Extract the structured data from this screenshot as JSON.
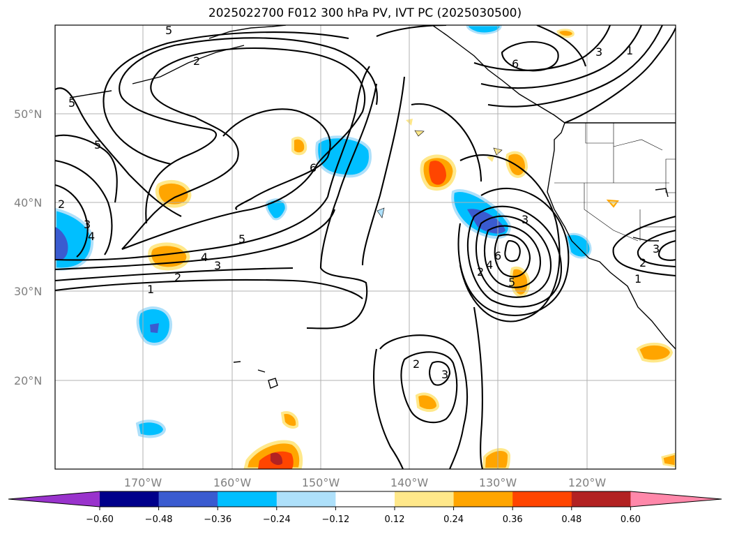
{
  "title": "2025022700 F012 300 hPa PV, IVT PC (2025030500)",
  "map": {
    "lat_labels": [
      "50°N",
      "40°N",
      "30°N",
      "20°N"
    ],
    "lon_labels": [
      "170°W",
      "160°W",
      "150°W",
      "140°W",
      "130°W",
      "120°W"
    ],
    "contour_labels": [
      "5",
      "2",
      "6",
      "3",
      "1",
      "5",
      "5",
      "2",
      "3",
      "4",
      "6",
      "5",
      "4",
      "3",
      "2",
      "1",
      "3",
      "2",
      "4",
      "6",
      "5",
      "2",
      "3",
      "3",
      "2",
      "1"
    ]
  },
  "colorbar": {
    "ticks": [
      "−0.60",
      "−0.48",
      "−0.36",
      "−0.24",
      "−0.12",
      "0.12",
      "0.24",
      "0.36",
      "0.48",
      "0.60"
    ],
    "colors": [
      "#9933cc",
      "#00008b",
      "#3a5bd0",
      "#00bfff",
      "#aee0fa",
      "#ffffff",
      "#ffe88a",
      "#ffa500",
      "#ff4500",
      "#b22222",
      "#ff88aa"
    ]
  }
}
